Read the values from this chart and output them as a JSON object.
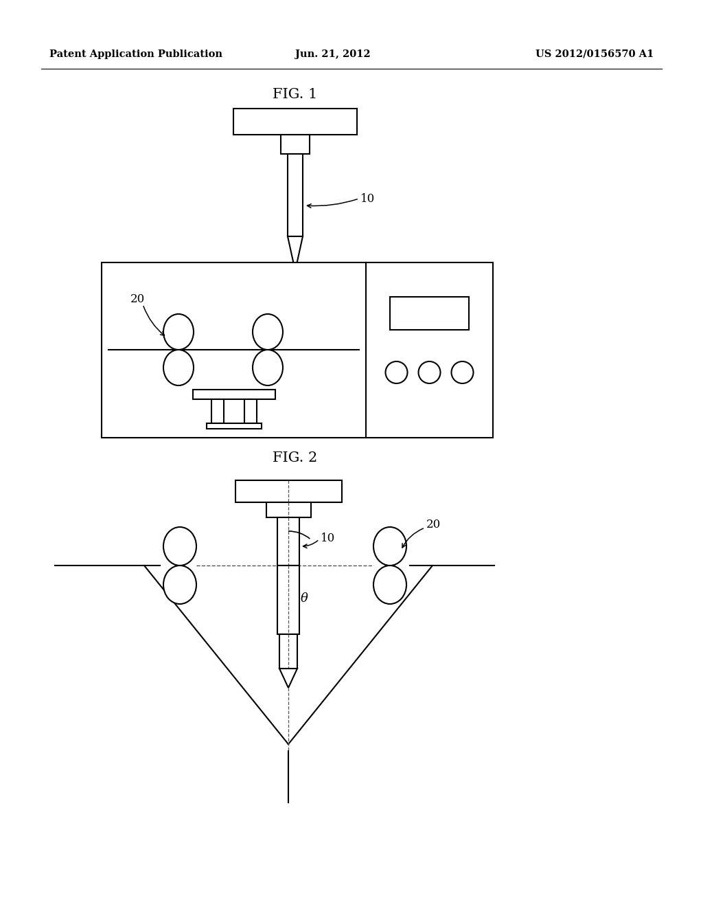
{
  "bg_color": "#ffffff",
  "line_color": "#000000",
  "header_left": "Patent Application Publication",
  "header_mid": "Jun. 21, 2012",
  "header_right": "US 2012/0156570 A1",
  "fig1_title": "FIG. 1",
  "fig2_title": "FIG. 2",
  "label_10": "10",
  "label_20": "20",
  "theta_label": "θ"
}
